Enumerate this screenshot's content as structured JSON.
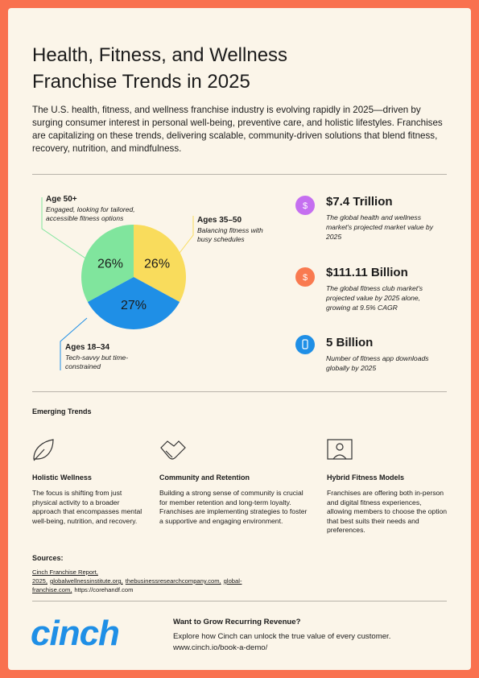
{
  "header": {
    "title": "Health, Fitness, and Wellness Franchise Trends in 2025",
    "intro": "The U.S. health, fitness, and wellness franchise industry is evolving rapidly in 2025—driven by surging consumer interest in personal well-being, preventive care, and holistic lifestyles. Franchises are capitalizing on these trends, delivering scalable, community-driven solutions that blend fitness, recovery, nutrition, and mindfulness."
  },
  "chart_data": {
    "type": "pie",
    "categories": [
      "Ages 35–50",
      "Ages 18–34",
      "Age 50+"
    ],
    "descriptions": [
      "Balancing fitness with busy schedules",
      "Tech-savvy but time-constrained",
      "Engaged, looking for tailored, accessible fitness options"
    ],
    "values": [
      26,
      27,
      26
    ],
    "value_labels": [
      "26%",
      "27%",
      "26%"
    ],
    "colors": [
      "#f9dc5c",
      "#1f8fe6",
      "#80e59d"
    ]
  },
  "stats": [
    {
      "icon": "$",
      "value": "$7.4 Trillion",
      "text": "The global health and wellness market's projected market value by 2025",
      "color": "#c56ff0"
    },
    {
      "icon": "$",
      "value": "$111.11 Billion",
      "text": "The global fitness club market's projected value by 2025 alone, growing at 9.5% CAGR",
      "color": "#f97a50"
    },
    {
      "value": "5 Billion",
      "text": "Number of fitness app downloads globally by 2025",
      "color": "#1f8fe6"
    }
  ],
  "trends": {
    "title": "Emerging Trends",
    "items": [
      {
        "title": "Holistic Wellness",
        "text": "The focus is shifting from just physical activity to a broader approach that encompasses mental well-being, nutrition, and recovery."
      },
      {
        "title": "Community and Retention",
        "text": "Building a strong sense of community is crucial for member retention and long-term loyalty. Franchises are implementing strategies to foster a supportive and engaging environment."
      },
      {
        "title": "Hybrid Fitness Models",
        "text": "Franchises are offering both in-person and digital fitness experiences, allowing members to choose the option that best suits their needs and preferences."
      }
    ]
  },
  "sources": {
    "title": "Sources:",
    "items": [
      "Cinch Franchise Report, 2025,",
      "globalwellnessinstitute.org,",
      "thebusinessresearchcompany.com,",
      "global-franchise.com,",
      "https://corehandf.com"
    ]
  },
  "footer": {
    "logo": "cinch",
    "cta_title": "Want to Grow Recurring Revenue?",
    "cta_text": "Explore how Cinch can unlock the true value of every customer.",
    "cta_url": "www.cinch.io/book-a-demo/"
  }
}
